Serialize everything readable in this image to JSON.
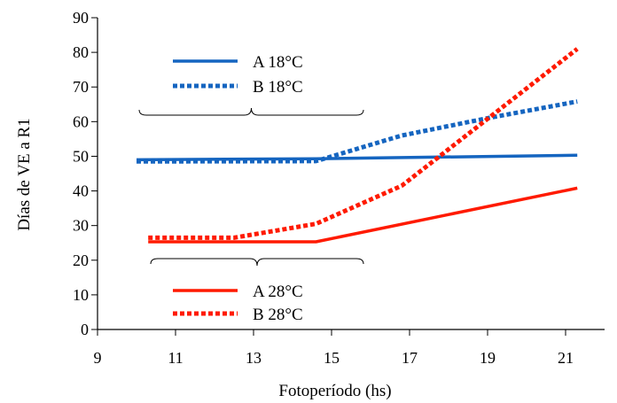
{
  "chart_data": {
    "type": "line",
    "title": "",
    "xlabel": "Fotoperíodo (hs)",
    "ylabel": "Días de VE a R1",
    "xlim": [
      9,
      22
    ],
    "ylim": [
      0,
      90
    ],
    "x_ticks": [
      9,
      11,
      13,
      15,
      17,
      19,
      21
    ],
    "y_ticks": [
      0,
      10,
      20,
      30,
      40,
      50,
      60,
      70,
      80,
      90
    ],
    "grid": false,
    "series": [
      {
        "name": "A 18°C",
        "color": "#1565C0",
        "style": "solid",
        "points": [
          [
            10,
            49
          ],
          [
            14.6,
            49.3
          ],
          [
            21.3,
            50.3
          ]
        ]
      },
      {
        "name": "B 18°C",
        "color": "#1565C0",
        "style": "dotted",
        "points": [
          [
            10,
            48.5
          ],
          [
            14.6,
            48.6
          ],
          [
            16.8,
            56
          ],
          [
            19,
            61
          ],
          [
            21.3,
            65.8
          ]
        ]
      },
      {
        "name": "A 28°C",
        "color": "#FF1A00",
        "style": "solid",
        "points": [
          [
            10.3,
            25.3
          ],
          [
            14.6,
            25.3
          ],
          [
            21.3,
            40.8
          ]
        ]
      },
      {
        "name": "B 28°C",
        "color": "#FF1A00",
        "style": "dotted",
        "points": [
          [
            10.3,
            26.5
          ],
          [
            12.5,
            26.5
          ],
          [
            14.6,
            30.5
          ],
          [
            16.8,
            41.5
          ],
          [
            21.3,
            81
          ]
        ]
      }
    ],
    "legend": [
      {
        "label": "A 18°C",
        "color": "#1565C0",
        "style": "solid"
      },
      {
        "label": "B 18°C",
        "color": "#1565C0",
        "style": "dotted"
      },
      {
        "label": "A 28°C",
        "color": "#FF1A00",
        "style": "solid"
      },
      {
        "label": "B 28°C",
        "color": "#FF1A00",
        "style": "dotted"
      }
    ],
    "legend_position": "inside, upper-left (18°C) and lower-left (28°C), grouped by braces"
  }
}
